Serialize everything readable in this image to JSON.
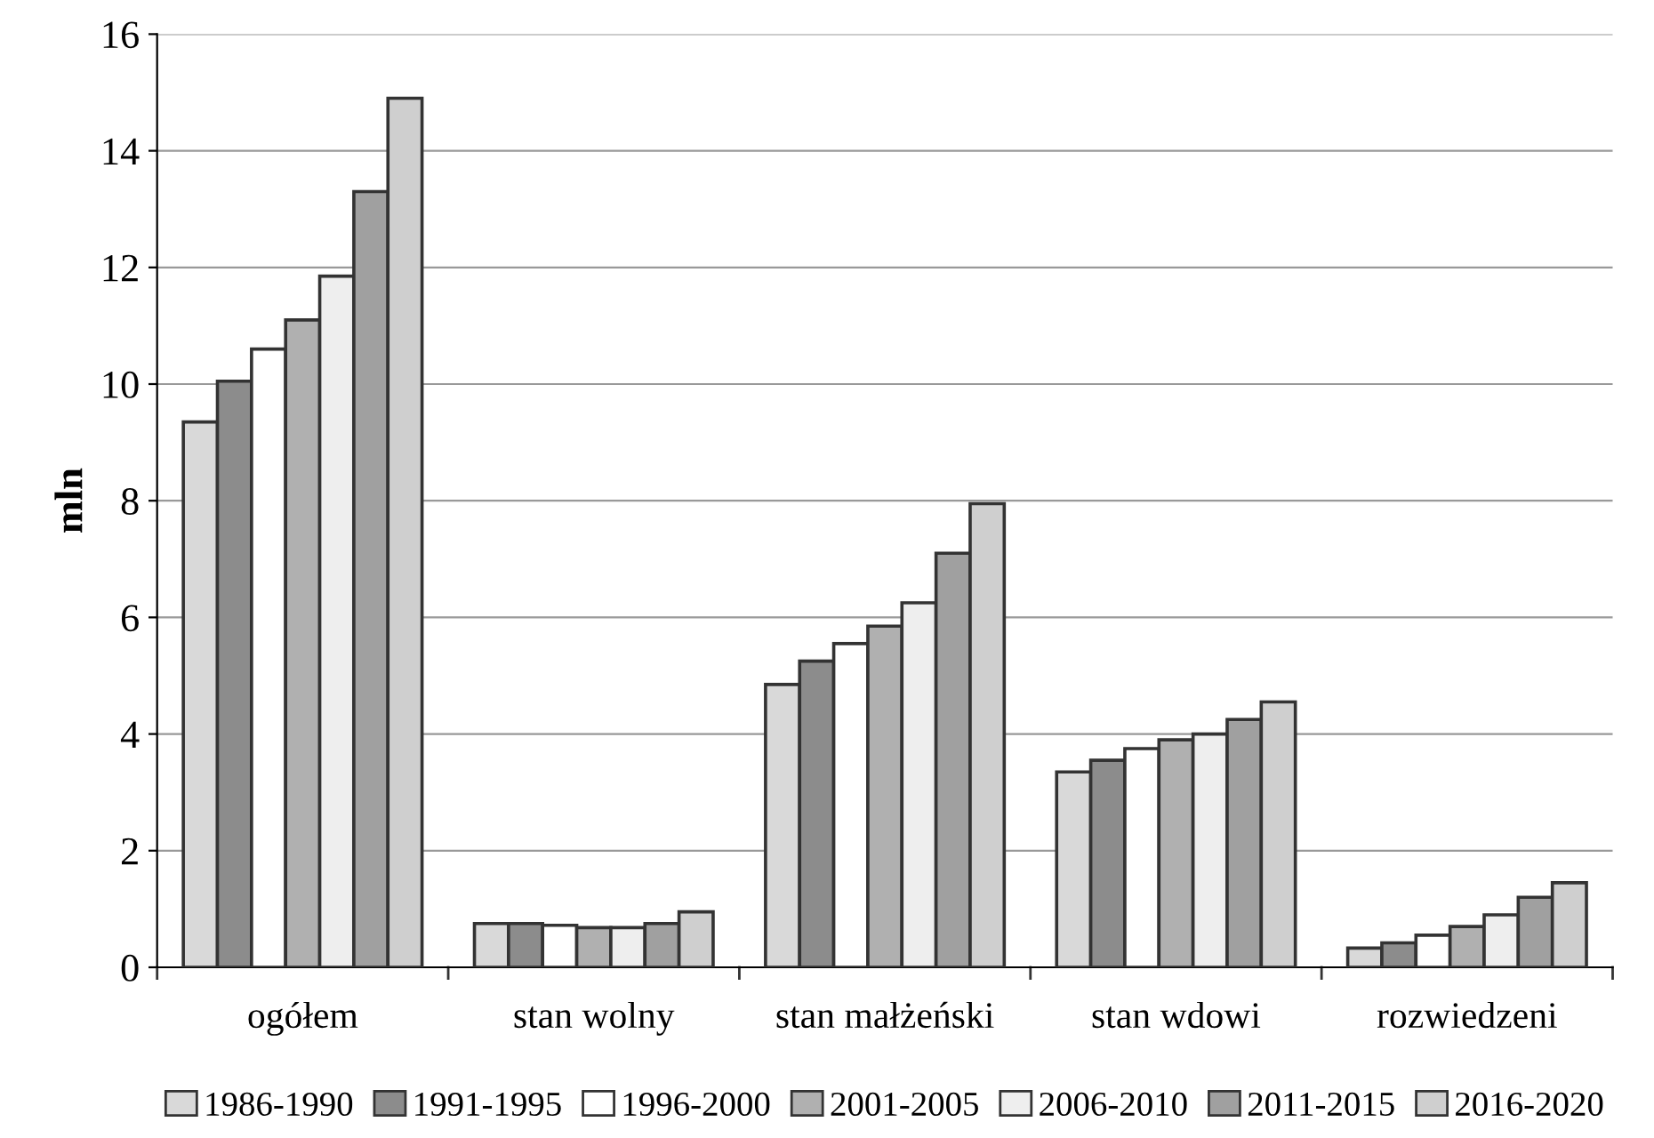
{
  "chart_data": {
    "type": "bar",
    "ylabel": "mln",
    "categories": [
      "ogółem",
      "stan wolny",
      "stan małżeński",
      "stan wdowi",
      "rozwiedzeni"
    ],
    "series": [
      {
        "name": "1986-1990",
        "color": "#d9d9d9",
        "values": [
          9.35,
          0.75,
          4.85,
          3.35,
          0.33
        ]
      },
      {
        "name": "1991-1995",
        "color": "#8c8c8c",
        "values": [
          10.05,
          0.75,
          5.25,
          3.55,
          0.42
        ]
      },
      {
        "name": "1996-2000",
        "color": "#ffffff",
        "values": [
          10.6,
          0.72,
          5.55,
          3.75,
          0.55
        ]
      },
      {
        "name": "2001-2005",
        "color": "#b0b0b0",
        "values": [
          11.1,
          0.68,
          5.85,
          3.9,
          0.7
        ]
      },
      {
        "name": "2006-2010",
        "color": "#eeeeee",
        "values": [
          11.85,
          0.68,
          6.25,
          4.0,
          0.9
        ]
      },
      {
        "name": "2011-2015",
        "color": "#a0a0a0",
        "values": [
          13.3,
          0.75,
          7.1,
          4.25,
          1.2
        ]
      },
      {
        "name": "2016-2020",
        "color": "#cfcfcf",
        "values": [
          14.9,
          0.95,
          7.95,
          4.55,
          1.45
        ]
      }
    ],
    "ylim": [
      0,
      16
    ],
    "yticks": [
      0,
      2,
      4,
      6,
      8,
      10,
      12,
      14,
      16
    ],
    "grid": "y",
    "legend": "bottom"
  }
}
